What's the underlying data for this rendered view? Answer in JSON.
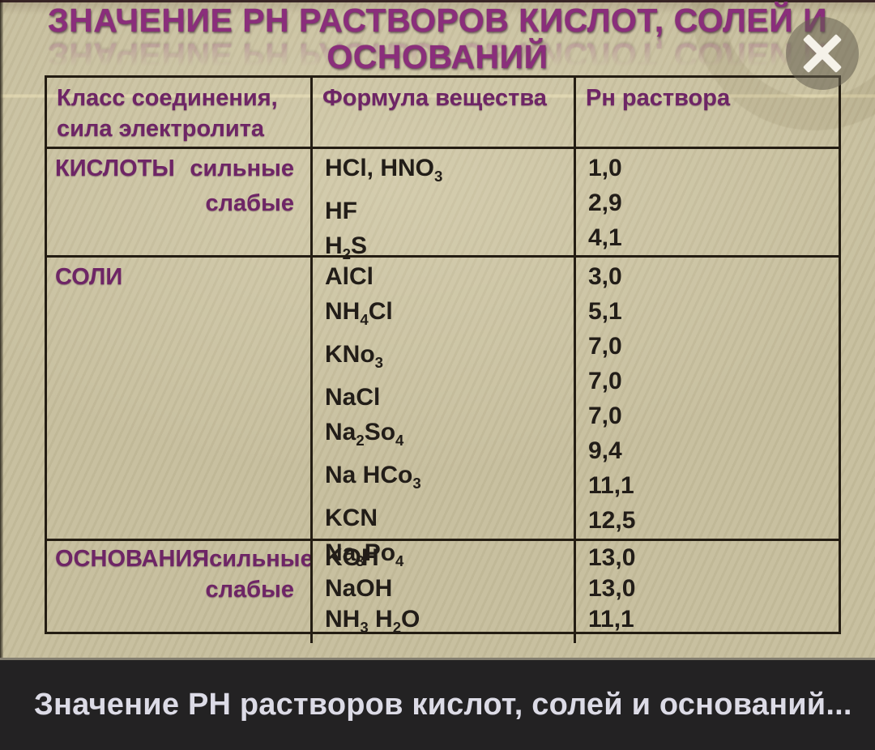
{
  "viewer": {
    "caption": "Значение РН растворов кислот, солей и оснований...",
    "close_icon": "✕"
  },
  "slide": {
    "title_line1": "ЗНАЧЕНИЕ РН РАСТВОРОВ КИСЛОТ, СОЛЕЙ И",
    "title_line2": "ОСНОВАНИЙ",
    "table": {
      "headers": {
        "col1": "Класс соединения,\nсила электролита",
        "col2": "Формула вещества",
        "col3": "Рн раствора"
      },
      "sections": [
        {
          "class_label": "КИСЛОТЫ",
          "strength_labels": [
            "сильные",
            "слабые"
          ],
          "rows": [
            {
              "formula": "HCl, HNO{3}",
              "ph": "1,0"
            },
            {
              "formula": "HF",
              "ph": "2,9"
            },
            {
              "formula": "H{2}S",
              "ph": "4,1"
            }
          ]
        },
        {
          "class_label": "СОЛИ",
          "strength_labels": [],
          "rows": [
            {
              "formula": "AlCl",
              "ph": "3,0"
            },
            {
              "formula": "NH{4}Cl",
              "ph": "5,1"
            },
            {
              "formula": "KNo{3}",
              "ph": "7,0"
            },
            {
              "formula": "NaCl",
              "ph": "7,0"
            },
            {
              "formula": "Na{2}So{4}",
              "ph": "7,0"
            },
            {
              "formula": "Na HCo{3}",
              "ph": "9,4"
            },
            {
              "formula": "KCN",
              "ph": "11,1"
            },
            {
              "formula": "Na{3}Po{4}",
              "ph": "12,5"
            }
          ]
        },
        {
          "class_label": "ОСНОВАНИЯ",
          "strength_labels": [
            "сильные",
            "слабые"
          ],
          "rows": [
            {
              "formula": "KOH",
              "ph": "13,0"
            },
            {
              "formula": "NaOH",
              "ph": "13,0"
            },
            {
              "formula": "NH{3} H{2}O",
              "ph": "11,1"
            }
          ]
        }
      ]
    }
  },
  "colors": {
    "title_purple": "#8a2e7b",
    "table_text_purple": "#6e2566",
    "formula_text": "#221d18",
    "slide_background": "#c8c0a0",
    "table_border": "#241d13",
    "caption_bar_background": "#232223",
    "caption_text": "#dcdbe6",
    "close_circle": "rgba(100,95,80,0.55)",
    "close_x": "#f5f2e9"
  }
}
